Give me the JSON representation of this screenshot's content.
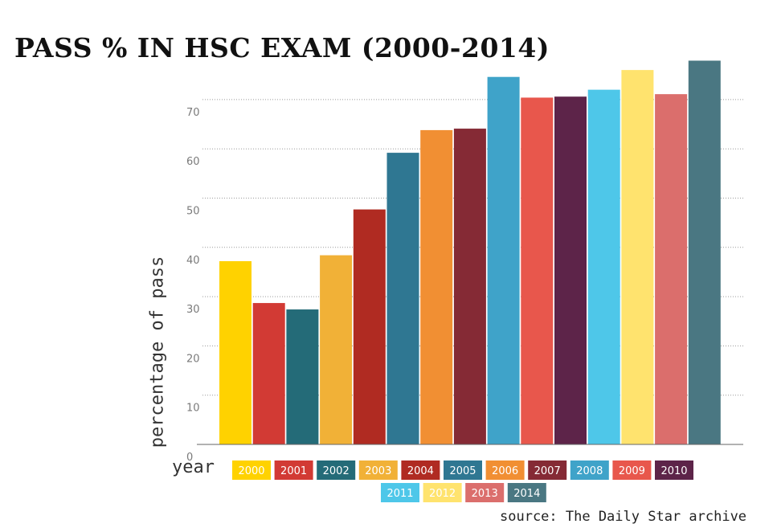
{
  "chart_data": {
    "type": "bar",
    "title": "PASS % IN HSC EXAM (2000-2014)",
    "xlabel": "year",
    "ylabel": "percentage of pass",
    "source": "source: The Daily Star archive",
    "ylim": [
      0,
      77
    ],
    "yticks": [
      0,
      10,
      20,
      30,
      40,
      50,
      60,
      70
    ],
    "grid": true,
    "legend_placement": "bottom",
    "categories": [
      "2000",
      "2001",
      "2002",
      "2003",
      "2004",
      "2005",
      "2006",
      "2007",
      "2008",
      "2009",
      "2010",
      "2011",
      "2012",
      "2013",
      "2014"
    ],
    "values": [
      37.2,
      28.7,
      27.4,
      38.4,
      47.7,
      59.2,
      63.8,
      64.1,
      74.6,
      70.4,
      70.6,
      72.0,
      76.0,
      71.1,
      77.9
    ],
    "colors": [
      "#FFD200",
      "#D23A34",
      "#246B78",
      "#F1B137",
      "#B02B22",
      "#2F7792",
      "#F18F33",
      "#852A35",
      "#3FA3C9",
      "#E8574C",
      "#5D2449",
      "#4EC7E9",
      "#FFE36E",
      "#DB6E6C",
      "#4A7782"
    ]
  }
}
